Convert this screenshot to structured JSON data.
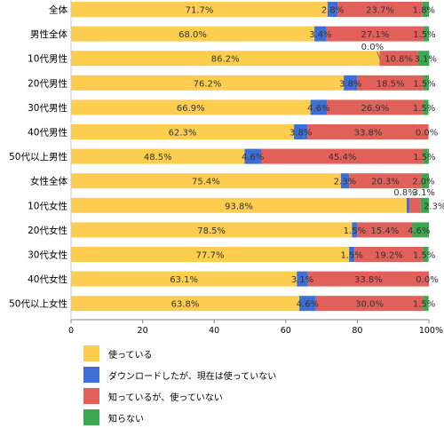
{
  "chart_data": {
    "type": "bar",
    "orientation": "horizontal",
    "stacked": true,
    "categories": [
      "全体",
      "男性全体",
      "10代男性",
      "20代男性",
      "30代男性",
      "40代男性",
      "50代以上男性",
      "女性全体",
      "10代女性",
      "20代女性",
      "30代女性",
      "40代女性",
      "50代以上女性"
    ],
    "series": [
      {
        "name": "使っている",
        "color": "#fdcd50",
        "values": [
          71.7,
          68.0,
          86.2,
          76.2,
          66.9,
          62.3,
          48.5,
          75.4,
          93.8,
          78.5,
          77.7,
          63.1,
          63.8
        ]
      },
      {
        "name": "ダウンロードしたが、現在は使っていない",
        "color": "#3e6fd4",
        "values": [
          2.8,
          3.4,
          0.0,
          3.8,
          4.6,
          3.8,
          4.6,
          2.3,
          0.8,
          1.5,
          1.5,
          3.1,
          4.6
        ]
      },
      {
        "name": "知っているが、使っていない",
        "color": "#e1605a",
        "values": [
          23.7,
          27.1,
          10.8,
          18.5,
          26.9,
          33.8,
          45.4,
          20.3,
          3.1,
          15.4,
          19.2,
          33.8,
          30.0
        ]
      },
      {
        "name": "知らない",
        "color": "#3aa84f",
        "values": [
          1.8,
          1.5,
          3.1,
          1.5,
          1.5,
          0.0,
          1.5,
          2.0,
          2.3,
          4.6,
          1.5,
          0.0,
          1.5
        ]
      }
    ],
    "value_labels": [
      [
        "71.7%",
        "2.8%",
        "23.7%",
        "1.8%"
      ],
      [
        "68.0%",
        "3.4%",
        "27.1%",
        "1.5%"
      ],
      [
        "86.2%",
        "0.0%",
        "10.8%",
        "3.1%"
      ],
      [
        "76.2%",
        "3.8%",
        "18.5%",
        "1.5%"
      ],
      [
        "66.9%",
        "4.6%",
        "26.9%",
        "1.5%"
      ],
      [
        "62.3%",
        "3.8%",
        "33.8%",
        "0.0%"
      ],
      [
        "48.5%",
        "4.6%",
        "45.4%",
        "1.5%"
      ],
      [
        "75.4%",
        "2.3%",
        "20.3%",
        "2.0%"
      ],
      [
        "93.8%",
        "0.8%",
        "3.1%",
        "2.3%"
      ],
      [
        "78.5%",
        "1.5%",
        "15.4%",
        "4.6%"
      ],
      [
        "77.7%",
        "1.5%",
        "19.2%",
        "1.5%"
      ],
      [
        "63.1%",
        "3.1%",
        "33.8%",
        "0.0%"
      ],
      [
        "63.8%",
        "4.6%",
        "30.0%",
        "1.5%"
      ]
    ],
    "xticks": [
      "0",
      "20",
      "40",
      "60",
      "80",
      "100%"
    ],
    "xlim": [
      0,
      100
    ],
    "legend_position": "bottom"
  }
}
